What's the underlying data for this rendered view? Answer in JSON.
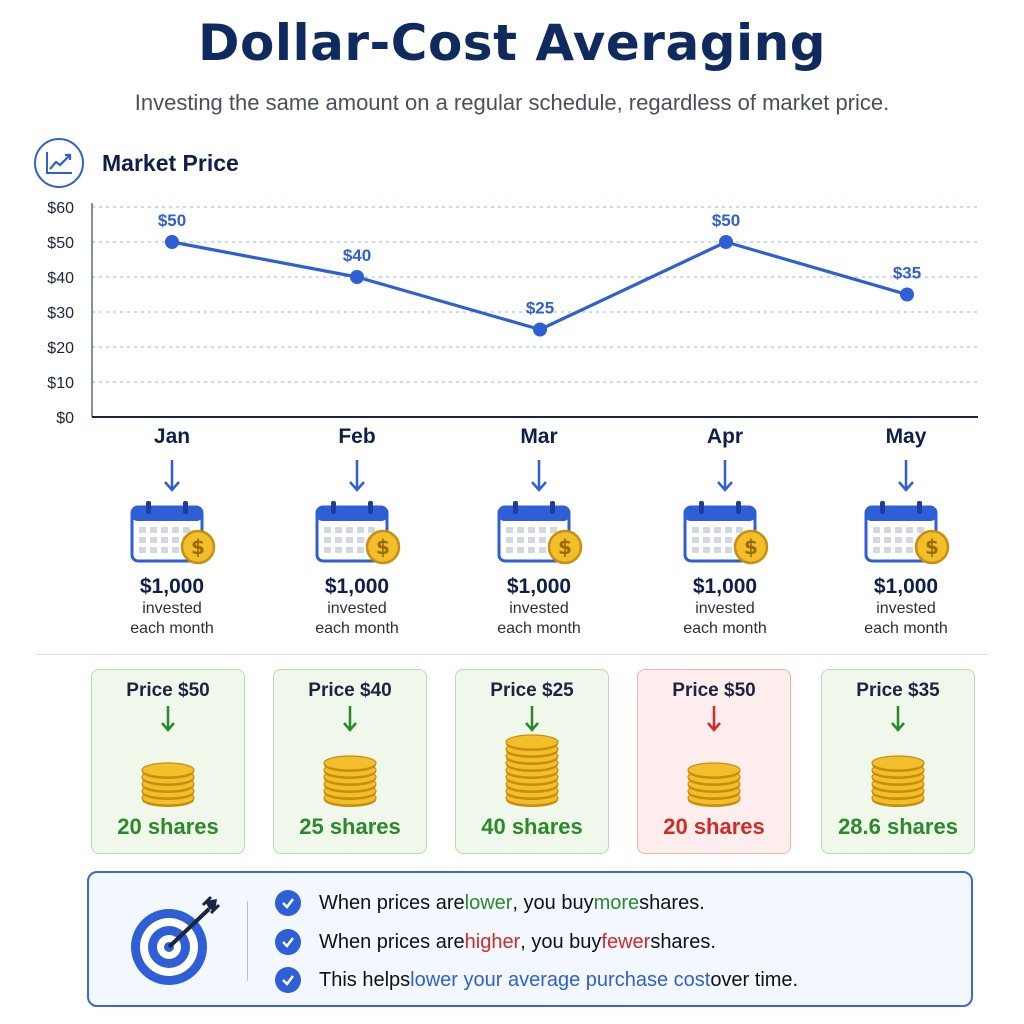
{
  "title": "Dollar-Cost Averaging",
  "subtitle": "Investing the same amount on a regular schedule, regardless of market price.",
  "chart_header": {
    "label": "Market Price",
    "icon": "line-chart-icon"
  },
  "chart_data": {
    "type": "line",
    "categories": [
      "Jan",
      "Feb",
      "Mar",
      "Apr",
      "May"
    ],
    "values": [
      50,
      40,
      25,
      50,
      35
    ],
    "point_labels": [
      "$50",
      "$40",
      "$25",
      "$50",
      "$35"
    ],
    "yticks": [
      "$0",
      "$10",
      "$20",
      "$30",
      "$40",
      "$50",
      "$60"
    ],
    "ylim": [
      0,
      60
    ],
    "grid": true,
    "color": "#2f5fd6"
  },
  "months": [
    {
      "name": "Jan",
      "amount": "$1,000",
      "line1": "invested",
      "line2": "each month"
    },
    {
      "name": "Feb",
      "amount": "$1,000",
      "line1": "invested",
      "line2": "each month"
    },
    {
      "name": "Mar",
      "amount": "$1,000",
      "line1": "invested",
      "line2": "each month"
    },
    {
      "name": "Apr",
      "amount": "$1,000",
      "line1": "invested",
      "line2": "each month"
    },
    {
      "name": "May",
      "amount": "$1,000",
      "line1": "invested",
      "line2": "each month"
    }
  ],
  "purchases": [
    {
      "price": "Price $50",
      "shares": "20 shares",
      "state": "low"
    },
    {
      "price": "Price $40",
      "shares": "25 shares",
      "state": "low"
    },
    {
      "price": "Price $25",
      "shares": "40 shares",
      "state": "low"
    },
    {
      "price": "Price $50",
      "shares": "20 shares",
      "state": "high"
    },
    {
      "price": "Price $35",
      "shares": "28.6 shares",
      "state": "low"
    }
  ],
  "summary": {
    "line1": {
      "a": "When prices are ",
      "b": "lower",
      "c": ", you buy ",
      "d": "more",
      "e": " shares."
    },
    "line2": {
      "a": "When prices are ",
      "b": "higher",
      "c": ", you buy ",
      "d": "fewer",
      "e": " shares."
    },
    "line3": {
      "a": "This helps ",
      "b": "lower your average purchase cost",
      "c": " over time."
    }
  },
  "colors": {
    "accent": "#2f5fd6",
    "navy": "#0f2a5e",
    "green": "#2a8a2a",
    "red": "#d22a25",
    "gold": "#f2bf2a"
  }
}
